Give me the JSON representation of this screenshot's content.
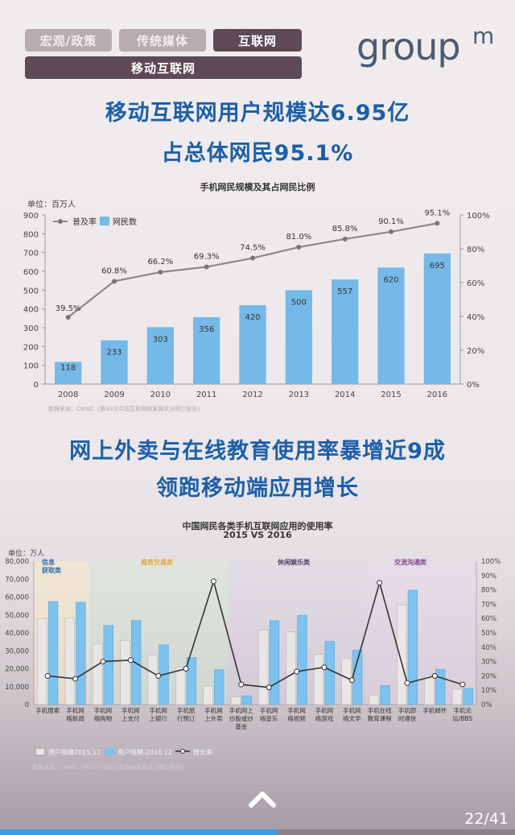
{
  "nav": {
    "tabs": [
      {
        "label": "宏观/政策",
        "active": false
      },
      {
        "label": "传统媒体",
        "active": false
      },
      {
        "label": "互联网",
        "active": true
      }
    ],
    "subtab": "移动互联网"
  },
  "logo": {
    "text": "group",
    "superscript": "m"
  },
  "headline1": {
    "line1": "移动互联网用户规模达6.95亿",
    "line2": "占总体网民95.1%"
  },
  "chart1": {
    "unit": "单位：百万人",
    "source": "数据来源：CNNIC《第39次中国互联网络发展状况统计报告》"
  },
  "headline2": {
    "line1": "网上外卖与在线教育使用率暴增近9成",
    "line2": "领跑移动端应用增长"
  },
  "chart2": {
    "unit": "单位：万人",
    "source": "数据来源：CNNIC《第39次中国互联网络发展状况统计报告》"
  },
  "footer": {
    "page": "22/41",
    "progress": 0.537
  },
  "chart_data": [
    {
      "type": "bar",
      "title": "手机网民规模及其占网民比例",
      "categories": [
        "2008",
        "2009",
        "2010",
        "2011",
        "2012",
        "2013",
        "2014",
        "2015",
        "2016"
      ],
      "series": [
        {
          "name": "网民数",
          "axis": "left",
          "color": "#74b9e7",
          "values": [
            118,
            233,
            303,
            356,
            420,
            500,
            557,
            620,
            695
          ]
        },
        {
          "name": "普及率",
          "axis": "right",
          "type": "line",
          "color": "#888888",
          "values": [
            39.5,
            60.8,
            66.2,
            69.3,
            74.5,
            81.0,
            85.8,
            90.1,
            95.1
          ],
          "labels": [
            "39.5%",
            "60.8%",
            "66.2%",
            "69.3%",
            "74.5%",
            "81.0%",
            "85.8%",
            "90.1%",
            "95.1%"
          ]
        }
      ],
      "ylim": [
        0,
        900
      ],
      "y_ticks": [
        0,
        100,
        200,
        300,
        400,
        500,
        600,
        700,
        800,
        900
      ],
      "y2lim": [
        0,
        100
      ],
      "y2_ticks": [
        "0%",
        "20%",
        "40%",
        "60%",
        "80%",
        "100%"
      ],
      "legend": "top-left",
      "grid": false
    },
    {
      "type": "bar",
      "title": "中国网民各类手机互联网应用的使用率",
      "subtitle": "2015 VS 2016",
      "categories": [
        "手机搜索",
        "手机网络新闻",
        "手机网络购物",
        "手机网上支付",
        "手机网上银行",
        "手机旅行预订",
        "手机网上外卖",
        "手机网上炒股或炒基金",
        "手机网络音乐",
        "手机网络视频",
        "手机网络游戏",
        "手机网络文学",
        "手机在线教育课程",
        "手机即时通信",
        "手机邮件",
        "手机论坛/BBS"
      ],
      "category_labels": [
        [
          "手机搜索"
        ],
        [
          "手机网",
          "络新闻"
        ],
        [
          "手机网",
          "络购物"
        ],
        [
          "手机网",
          "上支付"
        ],
        [
          "手机网",
          "上银行"
        ],
        [
          "手机旅",
          "行预订"
        ],
        [
          "手机网",
          "上外卖"
        ],
        [
          "手机网上",
          "炒股或炒",
          "基金"
        ],
        [
          "手机网",
          "络音乐"
        ],
        [
          "手机网",
          "络视频"
        ],
        [
          "手机网",
          "络游戏"
        ],
        [
          "手机网",
          "络文学"
        ],
        [
          "手机在线",
          "教育课程"
        ],
        [
          "手机即",
          "时通信"
        ],
        [
          "手机邮件"
        ],
        [
          "手机论",
          "坛/BBS"
        ]
      ],
      "groups": [
        {
          "label": "信息获取类",
          "from": 0,
          "to": 1,
          "color": "#e0a82e"
        },
        {
          "label": "商务交易类",
          "from": 2,
          "to": 6,
          "color": "#e0a82e"
        },
        {
          "label": "休闲娱乐类",
          "from": 7,
          "to": 11,
          "color": "#4a3a5c"
        },
        {
          "label": "交流沟通类",
          "from": 12,
          "to": 15,
          "color": "#7a4a8c"
        }
      ],
      "series": [
        {
          "name": "用户规模2015.12",
          "axis": "left",
          "color": "#e9e6e6",
          "values": [
            47800,
            48200,
            34000,
            35800,
            27700,
            21000,
            10400,
            4300,
            41600,
            40500,
            28000,
            25900,
            5300,
            55700,
            16400,
            8600
          ]
        },
        {
          "name": "用户规模-2016.12",
          "axis": "left",
          "color": "#7bc2ef",
          "values": [
            57500,
            57100,
            44100,
            46900,
            33300,
            26200,
            19400,
            4900,
            46800,
            49800,
            35200,
            30400,
            10600,
            63800,
            19700,
            9000
          ]
        },
        {
          "name": "增长率",
          "axis": "right",
          "type": "line",
          "color": "#333333",
          "values": [
            20,
            18,
            30,
            31,
            20,
            25,
            86,
            14,
            12,
            23,
            26,
            17,
            85,
            15,
            20,
            14
          ]
        }
      ],
      "ylim": [
        0,
        80000
      ],
      "y_ticks": [
        "0",
        "10,000",
        "20,000",
        "30,000",
        "40,000",
        "50,000",
        "60,000",
        "70,000",
        "80,000"
      ],
      "y2lim": [
        0,
        100
      ],
      "y2_ticks": [
        "0%",
        "10%",
        "20%",
        "30%",
        "40%",
        "50%",
        "60%",
        "70%",
        "80%",
        "90%",
        "100%"
      ],
      "legend": "bottom-left",
      "grid": false
    }
  ]
}
